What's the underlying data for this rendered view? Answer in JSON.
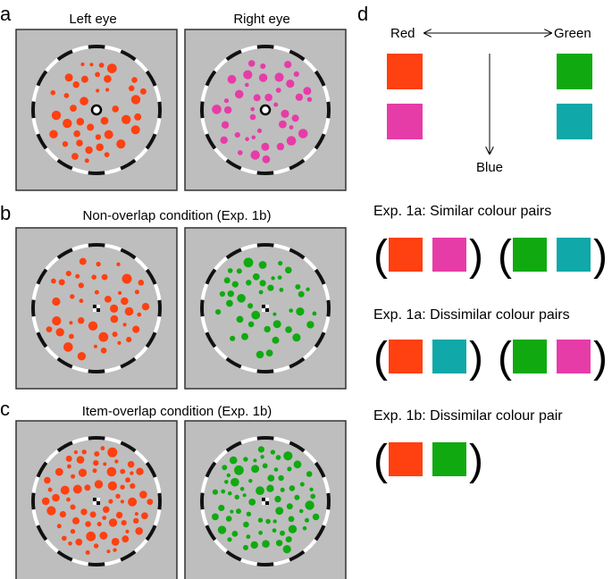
{
  "panels": {
    "a": {
      "letter": "a",
      "left_title": "Left eye",
      "right_title": "Right eye",
      "left_color": "#ff4010",
      "right_color": "#e63ca8"
    },
    "b": {
      "letter": "b",
      "title": "Non-overlap condition (Exp. 1b)",
      "left_color": "#ff4010",
      "right_color": "#10aa10"
    },
    "c": {
      "letter": "c",
      "title": "Item-overlap condition (Exp. 1b)",
      "left_color": "#ff4010",
      "right_color": "#10aa10"
    },
    "d": {
      "letter": "d",
      "axis": {
        "red_label": "Red",
        "green_label": "Green",
        "blue_label": "Blue"
      },
      "swatches": {
        "red": "#ff4010",
        "magenta": "#e63ca8",
        "green": "#10aa10",
        "teal": "#10a8a8"
      },
      "groups": [
        {
          "title": "Exp. 1a: Similar colour pairs",
          "pairs": [
            [
              "#ff4010",
              "#e63ca8"
            ],
            [
              "#10aa10",
              "#10a8a8"
            ]
          ]
        },
        {
          "title": "Exp. 1a: Dissimilar colour pairs",
          "pairs": [
            [
              "#ff4010",
              "#10a8a8"
            ],
            [
              "#10aa10",
              "#e63ca8"
            ]
          ]
        },
        {
          "title": "Exp. 1b: Dissimilar colour pair",
          "pairs": [
            [
              "#ff4010",
              "#10aa10"
            ]
          ]
        }
      ]
    }
  },
  "colors": {
    "stimulus_bg": "#bebebe",
    "frame": "#333333"
  }
}
